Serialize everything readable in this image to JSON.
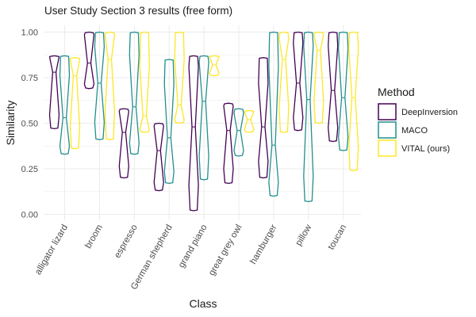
{
  "chart_data": {
    "type": "violin",
    "title": "User Study Section 3 results (free form)",
    "xlabel": "Class",
    "ylabel": "Similarity",
    "ylim": [
      0,
      1
    ],
    "yticks": [
      "0.00",
      "0.25",
      "0.50",
      "0.75",
      "1.00"
    ],
    "categories": [
      "alligator lizard",
      "broom",
      "espresso",
      "German shepherd",
      "grand piano",
      "great grey owl",
      "hamburger",
      "pillow",
      "toucan"
    ],
    "legend": {
      "title": "Method",
      "position": "right"
    },
    "series": [
      {
        "name": "DeepInversion",
        "color": "#440154",
        "violins": [
          {
            "min": 0.47,
            "max": 0.87,
            "median": 0.78,
            "q1": 0.62,
            "q3": 0.86
          },
          {
            "min": 0.69,
            "max": 1.0,
            "median": 0.83,
            "q1": 0.74,
            "q3": 0.97
          },
          {
            "min": 0.2,
            "max": 0.58,
            "median": 0.45,
            "q1": 0.33,
            "q3": 0.55
          },
          {
            "min": 0.13,
            "max": 0.5,
            "median": 0.35,
            "q1": 0.22,
            "q3": 0.47
          },
          {
            "min": 0.02,
            "max": 0.87,
            "median": 0.48,
            "q1": 0.3,
            "q3": 0.75
          },
          {
            "min": 0.17,
            "max": 0.61,
            "median": 0.46,
            "q1": 0.33,
            "q3": 0.58
          },
          {
            "min": 0.2,
            "max": 0.86,
            "median": 0.48,
            "q1": 0.38,
            "q3": 0.58
          },
          {
            "min": 0.46,
            "max": 1.0,
            "median": 0.72,
            "q1": 0.6,
            "q3": 0.88
          },
          {
            "min": 0.4,
            "max": 1.0,
            "median": 0.68,
            "q1": 0.55,
            "q3": 0.85
          }
        ]
      },
      {
        "name": "MACO",
        "color": "#21908c",
        "violins": [
          {
            "min": 0.33,
            "max": 0.87,
            "median": 0.53,
            "q1": 0.42,
            "q3": 0.66
          },
          {
            "min": 0.41,
            "max": 1.0,
            "median": 0.72,
            "q1": 0.6,
            "q3": 0.84
          },
          {
            "min": 0.33,
            "max": 1.0,
            "median": 0.59,
            "q1": 0.45,
            "q3": 0.75
          },
          {
            "min": 0.17,
            "max": 0.85,
            "median": 0.42,
            "q1": 0.3,
            "q3": 0.58
          },
          {
            "min": 0.19,
            "max": 0.87,
            "median": 0.62,
            "q1": 0.45,
            "q3": 0.8
          },
          {
            "min": 0.32,
            "max": 0.58,
            "median": 0.46,
            "q1": 0.38,
            "q3": 0.53
          },
          {
            "min": 0.1,
            "max": 1.0,
            "median": 0.38,
            "q1": 0.25,
            "q3": 0.62
          },
          {
            "min": 0.07,
            "max": 1.0,
            "median": 0.63,
            "q1": 0.35,
            "q3": 0.85
          },
          {
            "min": 0.35,
            "max": 1.0,
            "median": 0.64,
            "q1": 0.5,
            "q3": 0.82
          }
        ]
      },
      {
        "name": "VITAL (ours)",
        "color": "#fde725",
        "violins": [
          {
            "min": 0.36,
            "max": 0.86,
            "median": 0.76,
            "q1": 0.6,
            "q3": 0.84
          },
          {
            "min": 0.41,
            "max": 1.0,
            "median": 0.85,
            "q1": 0.72,
            "q3": 0.97
          },
          {
            "min": 0.45,
            "max": 1.0,
            "median": 0.54,
            "q1": 0.48,
            "q3": 0.62
          },
          {
            "min": 0.5,
            "max": 1.0,
            "median": 0.6,
            "q1": 0.53,
            "q3": 0.7
          },
          {
            "min": 0.76,
            "max": 0.87,
            "median": 0.82,
            "q1": 0.79,
            "q3": 0.86
          },
          {
            "min": 0.45,
            "max": 0.57,
            "median": 0.52,
            "q1": 0.48,
            "q3": 0.56
          },
          {
            "min": 0.45,
            "max": 1.0,
            "median": 0.85,
            "q1": 0.72,
            "q3": 0.93
          },
          {
            "min": 0.5,
            "max": 1.0,
            "median": 0.9,
            "q1": 0.74,
            "q3": 0.97
          },
          {
            "min": 0.24,
            "max": 1.0,
            "median": 0.64,
            "q1": 0.5,
            "q3": 0.82
          }
        ]
      }
    ]
  }
}
